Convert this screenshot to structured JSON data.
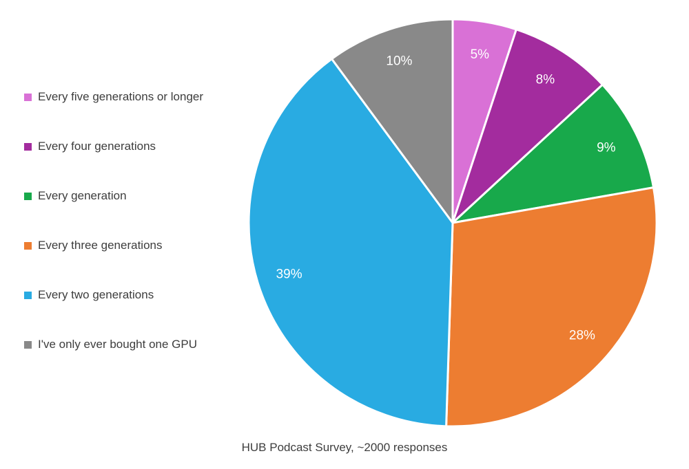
{
  "chart_data": {
    "type": "pie",
    "caption": "HUB Podcast Survey, ~2000 responses",
    "legend_position": "left",
    "label_color": "#ffffff",
    "slice_stroke": "#ffffff",
    "slices": [
      {
        "label": "Every five generations or longer",
        "value": 5,
        "pct_label": "5%",
        "color": "#D971D6"
      },
      {
        "label": "Every four generations",
        "value": 8,
        "pct_label": "8%",
        "color": "#A32C9E"
      },
      {
        "label": "Every generation",
        "value": 9,
        "pct_label": "9%",
        "color": "#18A94B"
      },
      {
        "label": "Every three generations",
        "value": 28,
        "pct_label": "28%",
        "color": "#ED7D31"
      },
      {
        "label": "Every two generations",
        "value": 39,
        "pct_label": "39%",
        "color": "#29ABE2"
      },
      {
        "label": "I've only ever bought one GPU",
        "value": 10,
        "pct_label": "10%",
        "color": "#898989"
      }
    ]
  }
}
